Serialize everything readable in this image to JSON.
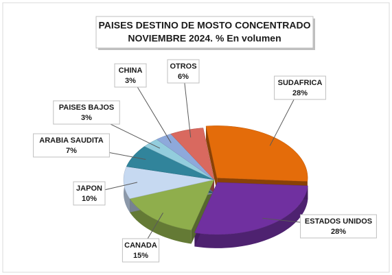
{
  "chart_data": {
    "type": "pie",
    "title": [
      "PAISES DESTINO DE MOSTO CONCENTRADO",
      "NOVIEMBRE 2024. % En volumen"
    ],
    "categories": [
      "SUDAFRICA",
      "ESTADOS UNIDOS",
      "CANADA",
      "JAPON",
      "ARABIA SAUDITA",
      "PAISES BAJOS",
      "CHINA",
      "OTROS"
    ],
    "values": [
      28,
      28,
      15,
      10,
      7,
      3,
      3,
      6
    ],
    "value_labels": [
      "28%",
      "28%",
      "15%",
      "10%",
      "7%",
      "3%",
      "3%",
      "6%"
    ],
    "colors": [
      "#e46c0a",
      "#7030a0",
      "#8fae4c",
      "#c6d9f1",
      "#31849b",
      "#93cddd",
      "#8ea9db",
      "#d9695f"
    ]
  }
}
